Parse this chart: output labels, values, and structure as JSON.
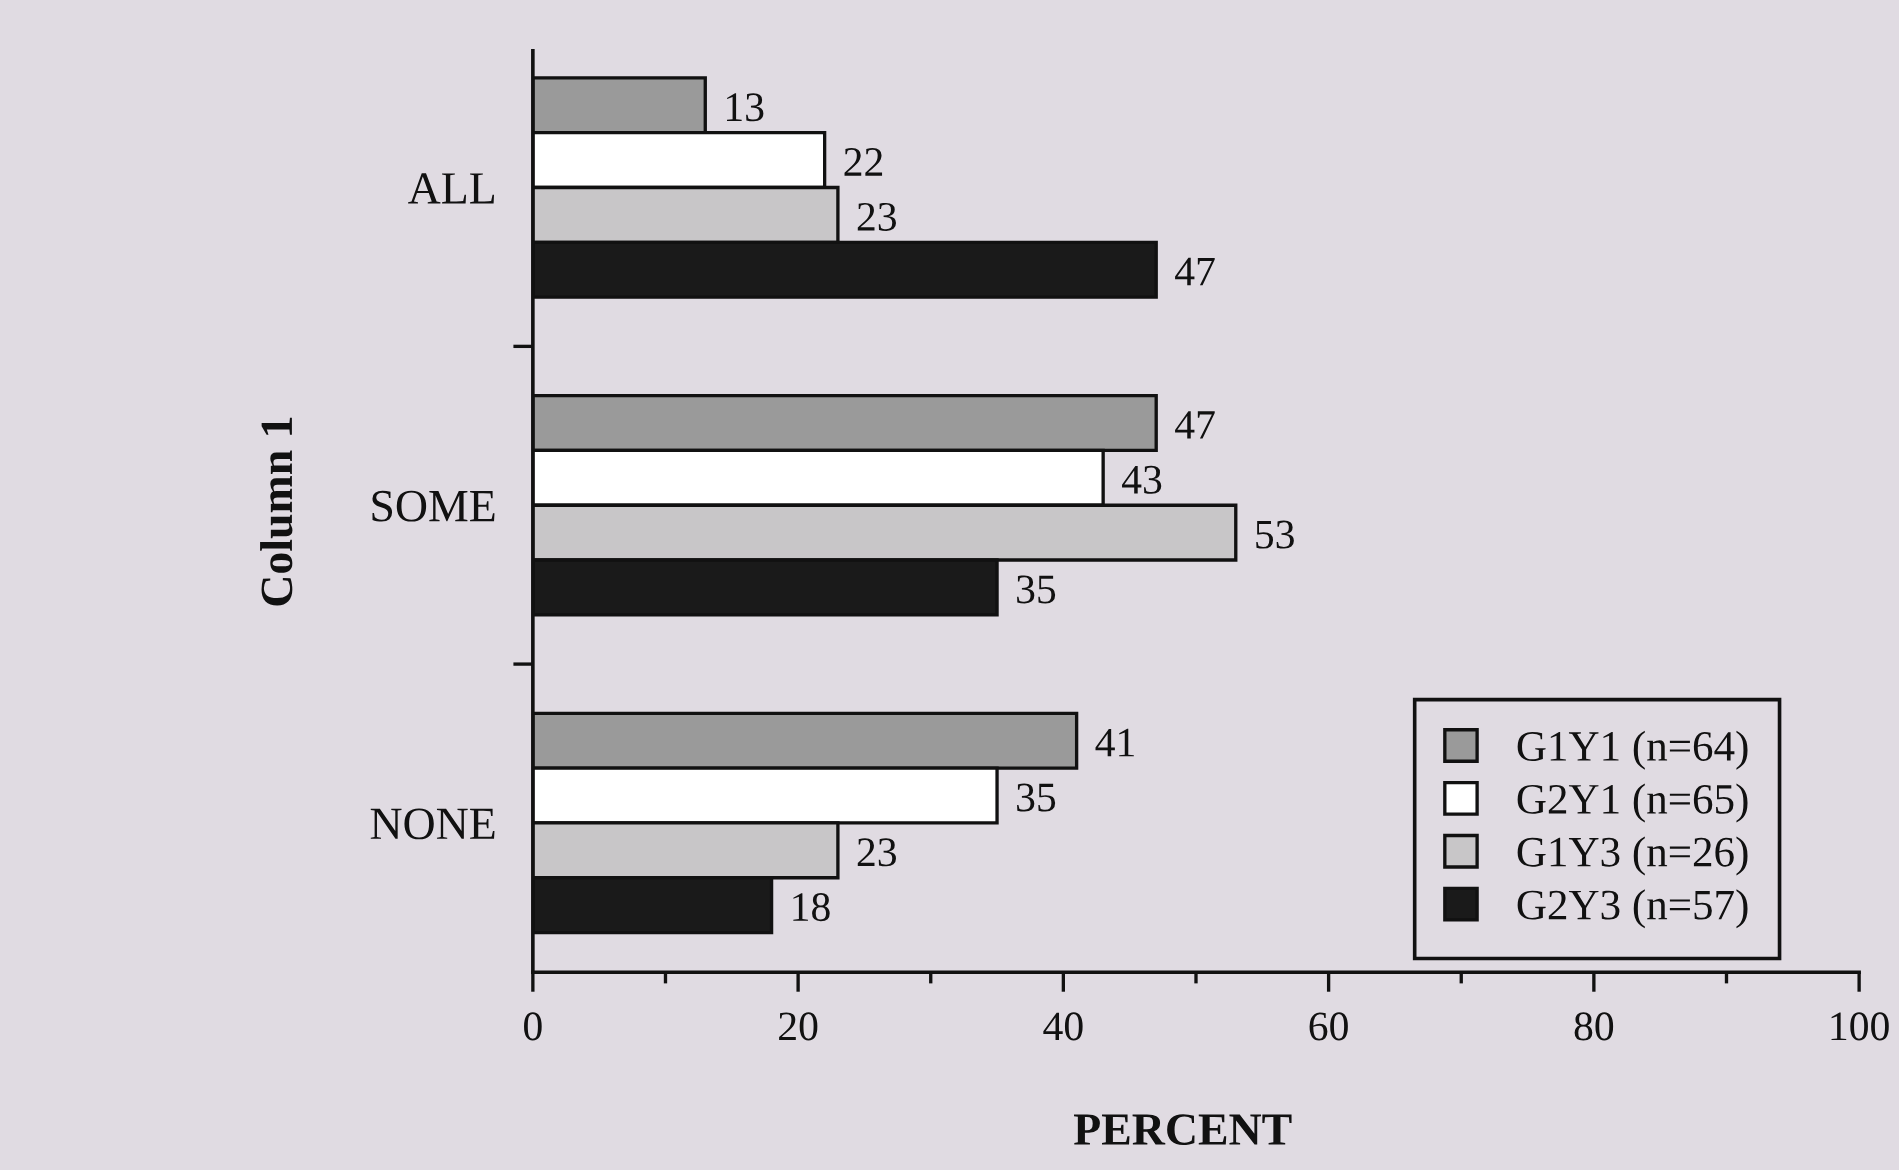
{
  "chart_data": {
    "type": "bar",
    "orientation": "horizontal",
    "xlabel": "PERCENT",
    "ylabel": "Column 1",
    "categories": [
      "ALL",
      "SOME",
      "NONE"
    ],
    "series": [
      {
        "name": "G1Y1 (n=64)",
        "color": "#9a9a9a",
        "values": [
          13,
          47,
          41
        ]
      },
      {
        "name": "G2Y1 (n=65)",
        "color": "#ffffff",
        "values": [
          22,
          43,
          35
        ]
      },
      {
        "name": "G1Y3 (n=26)",
        "color": "#c8c6c8",
        "values": [
          23,
          53,
          23
        ]
      },
      {
        "name": "G2Y3 (n=57)",
        "color": "#1a1a1a",
        "values": [
          47,
          35,
          18
        ]
      }
    ],
    "xlim": [
      0,
      100
    ],
    "xticks": [
      0,
      {
        "value": 10,
        "label": null
      },
      20,
      {
        "value": 30,
        "label": null
      },
      40,
      {
        "value": 50,
        "label": null
      },
      60,
      {
        "value": 70,
        "label": null
      },
      80,
      {
        "value": 90,
        "label": null
      },
      100
    ],
    "data_labels": true,
    "legend": "bottom right",
    "grid": false
  }
}
